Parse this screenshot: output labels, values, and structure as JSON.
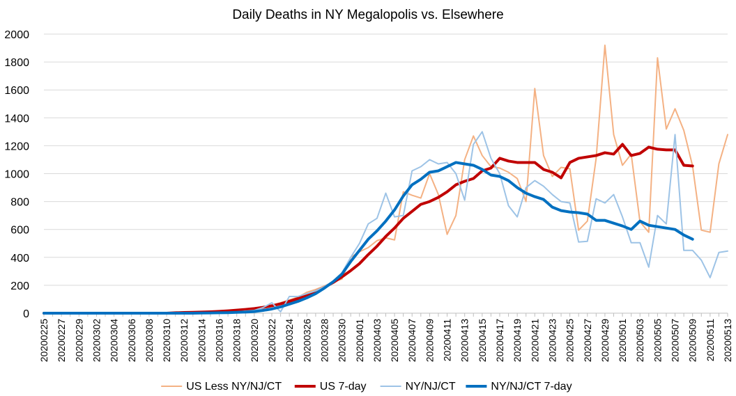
{
  "chart_data": {
    "type": "line",
    "title": "Daily Deaths in NY Megalopolis vs. Elsewhere",
    "xlabel": "",
    "ylabel": "",
    "ylim": [
      0,
      2000
    ],
    "yticks": [
      0,
      200,
      400,
      600,
      800,
      1000,
      1200,
      1400,
      1600,
      1800,
      2000
    ],
    "grid": true,
    "legend_position": "bottom",
    "x": [
      "20200225",
      "20200226",
      "20200227",
      "20200228",
      "20200229",
      "20200301",
      "20200302",
      "20200303",
      "20200304",
      "20200305",
      "20200306",
      "20200307",
      "20200308",
      "20200309",
      "20200310",
      "20200311",
      "20200312",
      "20200313",
      "20200314",
      "20200315",
      "20200316",
      "20200317",
      "20200318",
      "20200319",
      "20200320",
      "20200321",
      "20200322",
      "20200323",
      "20200324",
      "20200325",
      "20200326",
      "20200327",
      "20200328",
      "20200329",
      "20200330",
      "20200331",
      "20200401",
      "20200402",
      "20200403",
      "20200404",
      "20200405",
      "20200406",
      "20200407",
      "20200408",
      "20200409",
      "20200410",
      "20200411",
      "20200412",
      "20200413",
      "20200414",
      "20200415",
      "20200416",
      "20200417",
      "20200418",
      "20200419",
      "20200420",
      "20200421",
      "20200422",
      "20200423",
      "20200424",
      "20200425",
      "20200426",
      "20200427",
      "20200428",
      "20200429",
      "20200430",
      "20200501",
      "20200502",
      "20200503",
      "20200504",
      "20200505",
      "20200506",
      "20200507",
      "20200508",
      "20200509",
      "20200510",
      "20200511",
      "20200512",
      "20200513"
    ],
    "x_tick_labels": [
      "20200225",
      "20200227",
      "20200229",
      "20200302",
      "20200304",
      "20200306",
      "20200308",
      "20200310",
      "20200312",
      "20200314",
      "20200316",
      "20200318",
      "20200320",
      "20200322",
      "20200324",
      "20200326",
      "20200328",
      "20200330",
      "20200401",
      "20200403",
      "20200405",
      "20200407",
      "20200409",
      "20200411",
      "20200413",
      "20200415",
      "20200417",
      "20200419",
      "20200421",
      "20200423",
      "20200425",
      "20200427",
      "20200429",
      "20200501",
      "20200503",
      "20200505",
      "20200507",
      "20200509",
      "20200511",
      "20200513"
    ],
    "series": [
      {
        "name": "US Less NY/NJ/CT",
        "color": "#F4B183",
        "width": 2,
        "values": [
          0,
          0,
          0,
          0,
          0,
          0,
          0,
          0,
          0,
          0,
          0,
          0,
          0,
          0,
          0,
          3,
          5,
          5,
          8,
          10,
          14,
          18,
          22,
          27,
          35,
          45,
          55,
          75,
          95,
          115,
          150,
          170,
          195,
          225,
          245,
          400,
          440,
          470,
          520,
          540,
          525,
          870,
          845,
          825,
          1000,
          850,
          565,
          700,
          1100,
          1270,
          1130,
          1050,
          1040,
          1010,
          965,
          800,
          1610,
          1130,
          980,
          1045,
          1035,
          595,
          660,
          1110,
          1920,
          1280,
          1060,
          1140,
          655,
          580,
          1830,
          1320,
          1465,
          1310,
          1055,
          595,
          580,
          1070,
          1280
        ]
      },
      {
        "name": "US 7-day",
        "color": "#C00000",
        "width": 4,
        "values": [
          0,
          0,
          0,
          0,
          0,
          0,
          0,
          0,
          0,
          0,
          0,
          0,
          0,
          0,
          0,
          3,
          5,
          6,
          8,
          10,
          13,
          17,
          22,
          27,
          33,
          42,
          53,
          67,
          85,
          105,
          130,
          155,
          185,
          220,
          260,
          305,
          355,
          420,
          480,
          550,
          610,
          680,
          730,
          780,
          800,
          830,
          870,
          920,
          945,
          965,
          1020,
          1040,
          1110,
          1090,
          1080,
          1080,
          1080,
          1030,
          1010,
          970,
          1080,
          1110,
          1120,
          1130,
          1150,
          1140,
          1210,
          1130,
          1145,
          1190,
          1175,
          1170,
          1170,
          1060,
          1055,
          null,
          null,
          null,
          null
        ]
      },
      {
        "name": "NY/NJ/CT",
        "color": "#9DC3E6",
        "width": 2,
        "values": [
          0,
          0,
          0,
          0,
          0,
          0,
          0,
          0,
          0,
          0,
          0,
          0,
          0,
          0,
          0,
          0,
          0,
          0,
          2,
          3,
          4,
          5,
          10,
          15,
          20,
          40,
          75,
          10,
          120,
          120,
          140,
          160,
          190,
          230,
          290,
          400,
          500,
          640,
          680,
          860,
          690,
          700,
          1020,
          1050,
          1100,
          1070,
          1080,
          1000,
          810,
          1210,
          1300,
          1110,
          1000,
          770,
          690,
          900,
          950,
          910,
          850,
          800,
          790,
          510,
          515,
          820,
          790,
          850,
          690,
          505,
          505,
          330,
          700,
          640,
          1280,
          450,
          450,
          380,
          255,
          435,
          445
        ]
      },
      {
        "name": "NY/NJ/CT 7-day",
        "color": "#0070C0",
        "width": 4,
        "values": [
          0,
          0,
          0,
          0,
          0,
          0,
          0,
          0,
          0,
          0,
          0,
          0,
          0,
          0,
          0,
          0,
          0,
          0,
          1,
          2,
          3,
          4,
          6,
          8,
          12,
          20,
          30,
          45,
          65,
          85,
          110,
          140,
          180,
          225,
          280,
          370,
          450,
          530,
          590,
          660,
          740,
          840,
          920,
          960,
          1010,
          1020,
          1050,
          1080,
          1070,
          1060,
          1030,
          990,
          980,
          950,
          900,
          860,
          835,
          815,
          760,
          735,
          725,
          720,
          710,
          665,
          665,
          645,
          625,
          600,
          660,
          630,
          620,
          610,
          600,
          560,
          530,
          null,
          null,
          null,
          null
        ]
      }
    ]
  }
}
